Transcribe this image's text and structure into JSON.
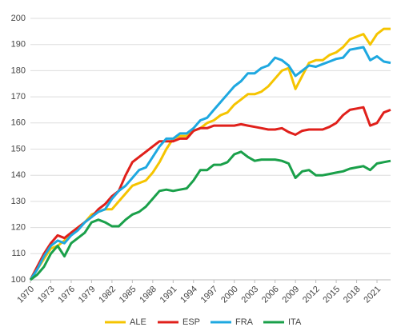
{
  "chart_data": {
    "type": "line",
    "x": [
      1970,
      1971,
      1972,
      1973,
      1974,
      1975,
      1976,
      1977,
      1978,
      1979,
      1980,
      1981,
      1982,
      1983,
      1984,
      1985,
      1986,
      1987,
      1988,
      1989,
      1990,
      1991,
      1992,
      1993,
      1994,
      1995,
      1996,
      1997,
      1998,
      1999,
      2000,
      2001,
      2002,
      2003,
      2004,
      2005,
      2006,
      2007,
      2008,
      2009,
      2010,
      2011,
      2012,
      2013,
      2014,
      2015,
      2016,
      2017,
      2018,
      2019,
      2020,
      2021,
      2022,
      2023
    ],
    "series": [
      {
        "name": "ALE",
        "color": "#f5c400",
        "values": [
          100,
          104,
          108,
          112,
          113,
          115,
          118,
          120,
          122,
          125,
          126,
          127,
          127,
          130,
          133,
          136,
          137,
          138,
          141,
          145,
          150,
          154,
          155,
          155,
          157,
          158,
          160,
          161,
          163,
          164,
          167,
          169,
          171,
          171,
          172,
          174,
          177,
          180,
          181,
          173,
          178,
          183,
          184,
          184,
          186,
          187,
          189,
          192,
          193,
          194,
          190,
          194,
          196,
          196
        ]
      },
      {
        "name": "ESP",
        "color": "#e0201b",
        "values": [
          100,
          105,
          110,
          114,
          117,
          116,
          118,
          120,
          122,
          124,
          127,
          129,
          132,
          134,
          140,
          145,
          147,
          149,
          151,
          153,
          153,
          153,
          154,
          154,
          157,
          158,
          158,
          159,
          159,
          159,
          159,
          159.5,
          159,
          158.5,
          158,
          157.5,
          157.5,
          158,
          156.5,
          155.5,
          157,
          157.5,
          157.5,
          157.5,
          158.5,
          160,
          163,
          165,
          165.5,
          166,
          159,
          160,
          164,
          165
        ]
      },
      {
        "name": "FRA",
        "color": "#1ea8e0",
        "values": [
          100,
          104,
          109,
          113,
          115,
          114,
          117,
          119,
          122,
          124,
          126,
          127,
          131,
          134,
          136,
          139,
          142,
          143,
          147,
          151,
          154,
          154,
          156,
          156,
          158,
          161,
          162,
          165,
          168,
          171,
          174,
          176,
          179,
          179,
          181,
          182,
          185,
          184,
          182,
          178,
          180,
          182,
          181.5,
          182.5,
          183.5,
          184.5,
          185,
          188,
          188.5,
          189,
          184,
          185.5,
          183.5,
          183
        ]
      },
      {
        "name": "ITA",
        "color": "#1aa04a",
        "values": [
          100,
          102,
          105,
          110,
          113,
          109,
          114,
          116,
          118,
          122,
          123,
          122,
          120.5,
          120.5,
          123,
          125,
          126,
          128,
          131,
          134,
          134.5,
          134,
          134.5,
          135,
          138,
          142,
          142,
          144,
          144,
          145,
          148,
          149,
          147,
          145.5,
          146,
          146,
          146,
          145.5,
          144.5,
          139,
          141.5,
          142,
          140,
          140,
          140.5,
          141,
          141.5,
          142.5,
          143,
          143.5,
          142,
          144.5,
          145,
          145.5
        ]
      }
    ],
    "xlim": [
      1970,
      2023
    ],
    "xticks": [
      1970,
      1973,
      1976,
      1979,
      1982,
      1985,
      1988,
      1991,
      1994,
      1997,
      2000,
      2003,
      2006,
      2009,
      2012,
      2015,
      2018,
      2021
    ],
    "ylim": [
      100,
      200
    ],
    "yticks": [
      100,
      110,
      120,
      130,
      140,
      150,
      160,
      170,
      180,
      190,
      200
    ],
    "grid": true,
    "legend": "bottom"
  }
}
